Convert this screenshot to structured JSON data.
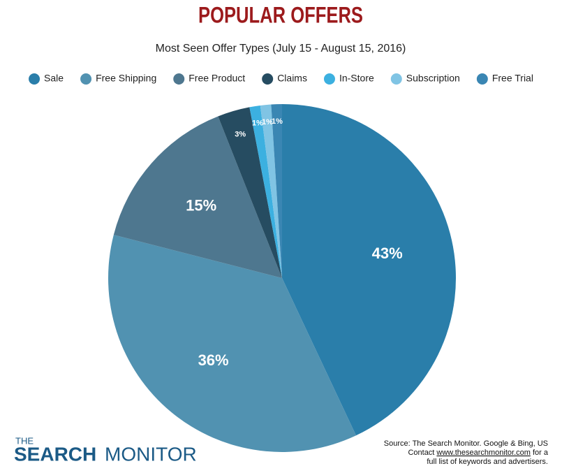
{
  "chart_data": {
    "type": "pie",
    "title": "POPULAR OFFERS",
    "subtitle": "Most Seen Offer Types (July 15 - August 15, 2016)",
    "categories": [
      "Sale",
      "Free Shipping",
      "Free Product",
      "Claims",
      "In-Store",
      "Subscription",
      "Free Trial"
    ],
    "values": [
      43,
      36,
      15,
      3,
      1,
      1,
      1
    ],
    "value_labels": [
      "43%",
      "36%",
      "15%",
      "3%",
      "1%",
      "1%",
      "1%"
    ],
    "colors": [
      "#2a7eaa",
      "#5192b1",
      "#4e778f",
      "#264c61",
      "#3cb0e0",
      "#80c4e4",
      "#3a86b3"
    ],
    "legend": "top"
  },
  "footer": {
    "logo": [
      "THE",
      "SEARCH",
      "MONITOR"
    ],
    "source": [
      "Source: The Search Monitor. Google & Bing, US",
      "Contact ",
      "www.thesearchmonitor.com",
      " for a",
      "full list of keywords and advertisers."
    ]
  }
}
